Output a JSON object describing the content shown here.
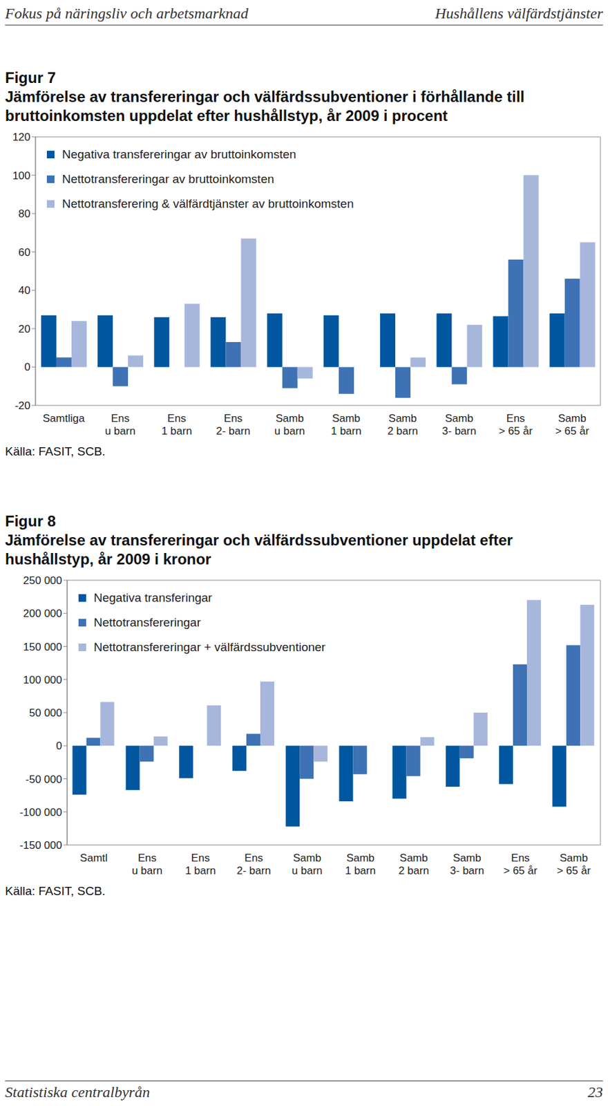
{
  "header": {
    "left": "Fokus på näringsliv och arbetsmarknad",
    "right": "Hushållens välfärdstjänster"
  },
  "footer": {
    "left": "Statistiska centralbyrån",
    "right": "23"
  },
  "chart_data": [
    {
      "type": "bar",
      "title": "Figur 7",
      "subtitle": "Jämförelse av transfereringar och välfärdssubventioner i förhållande till bruttoinkomsten uppdelat efter hushållstyp, år 2009 i procent",
      "annotations": [
        "Källa: FASIT, SCB."
      ],
      "categories": [
        "Samtliga",
        "Ens\nu barn",
        "Ens\n1 barn",
        "Ens\n2- barn",
        "Samb\nu barn",
        "Samb\n1 barn",
        "Samb\n2 barn",
        "Samb\n3- barn",
        "Ens\n> 65 år",
        "Samb\n> 65 år"
      ],
      "series": [
        {
          "name": "Negativa transfereringar av bruttoinkomsten",
          "color": "#0057a0",
          "values": [
            27,
            27,
            26,
            26,
            28,
            27,
            28,
            28,
            26.5,
            28
          ]
        },
        {
          "name": "Nettotransfereringar av bruttoinkomsten",
          "color": "#3e72b4",
          "values": [
            5,
            -10,
            0,
            13,
            -11,
            -14,
            -16,
            -9,
            56,
            46
          ]
        },
        {
          "name": "Nettotransferering & välfärdtjänster av bruttoinkomsten",
          "color": "#a7b7dc",
          "values": [
            24,
            6,
            33,
            67,
            -6,
            0,
            5,
            22,
            100,
            65
          ]
        }
      ],
      "ylim": [
        -20,
        120
      ],
      "yticks": [
        -20,
        0,
        20,
        40,
        60,
        80,
        100,
        120
      ],
      "grid": false,
      "legend": "upper left"
    },
    {
      "type": "bar",
      "title": "Figur 8",
      "subtitle": "Jämförelse av transfereringar och välfärdssubventioner uppdelat efter hushållstyp, år 2009 i kronor",
      "annotations": [
        "Källa: FASIT, SCB."
      ],
      "categories": [
        "Samtl",
        "Ens\nu barn",
        "Ens\n1 barn",
        "Ens\n2- barn",
        "Samb\nu barn",
        "Samb\n1 barn",
        "Samb\n2 barn",
        "Samb\n3- barn",
        "Ens\n> 65 år",
        "Samb\n> 65 år"
      ],
      "series": [
        {
          "name": "Negativa transferingar",
          "color": "#0057a0",
          "values": [
            -74000,
            -67000,
            -49000,
            -38000,
            -122000,
            -84000,
            -80000,
            -62000,
            -58000,
            -92000
          ]
        },
        {
          "name": "Nettotransfereringar",
          "color": "#3e72b4",
          "values": [
            12000,
            -24000,
            0,
            18000,
            -50000,
            -43000,
            -46000,
            -19000,
            123000,
            152000
          ]
        },
        {
          "name": "Nettotransfereringar + välfärdssubventioner",
          "color": "#a7b7dc",
          "values": [
            66000,
            14000,
            61000,
            97000,
            -24000,
            0,
            13000,
            50000,
            220000,
            213000
          ]
        }
      ],
      "ylim": [
        -150000,
        250000
      ],
      "yticks": [
        {
          "value": -150000,
          "label": "-150 000"
        },
        {
          "value": -100000,
          "label": "-100 000"
        },
        {
          "value": -50000,
          "label": "-50 000"
        },
        {
          "value": 0,
          "label": "0"
        },
        {
          "value": 50000,
          "label": "50 000"
        },
        {
          "value": 100000,
          "label": "100 000"
        },
        {
          "value": 150000,
          "label": "150 000"
        },
        {
          "value": 200000,
          "label": "200 000"
        },
        {
          "value": 250000,
          "label": "250 000"
        }
      ],
      "grid": false,
      "legend": "upper left"
    }
  ]
}
